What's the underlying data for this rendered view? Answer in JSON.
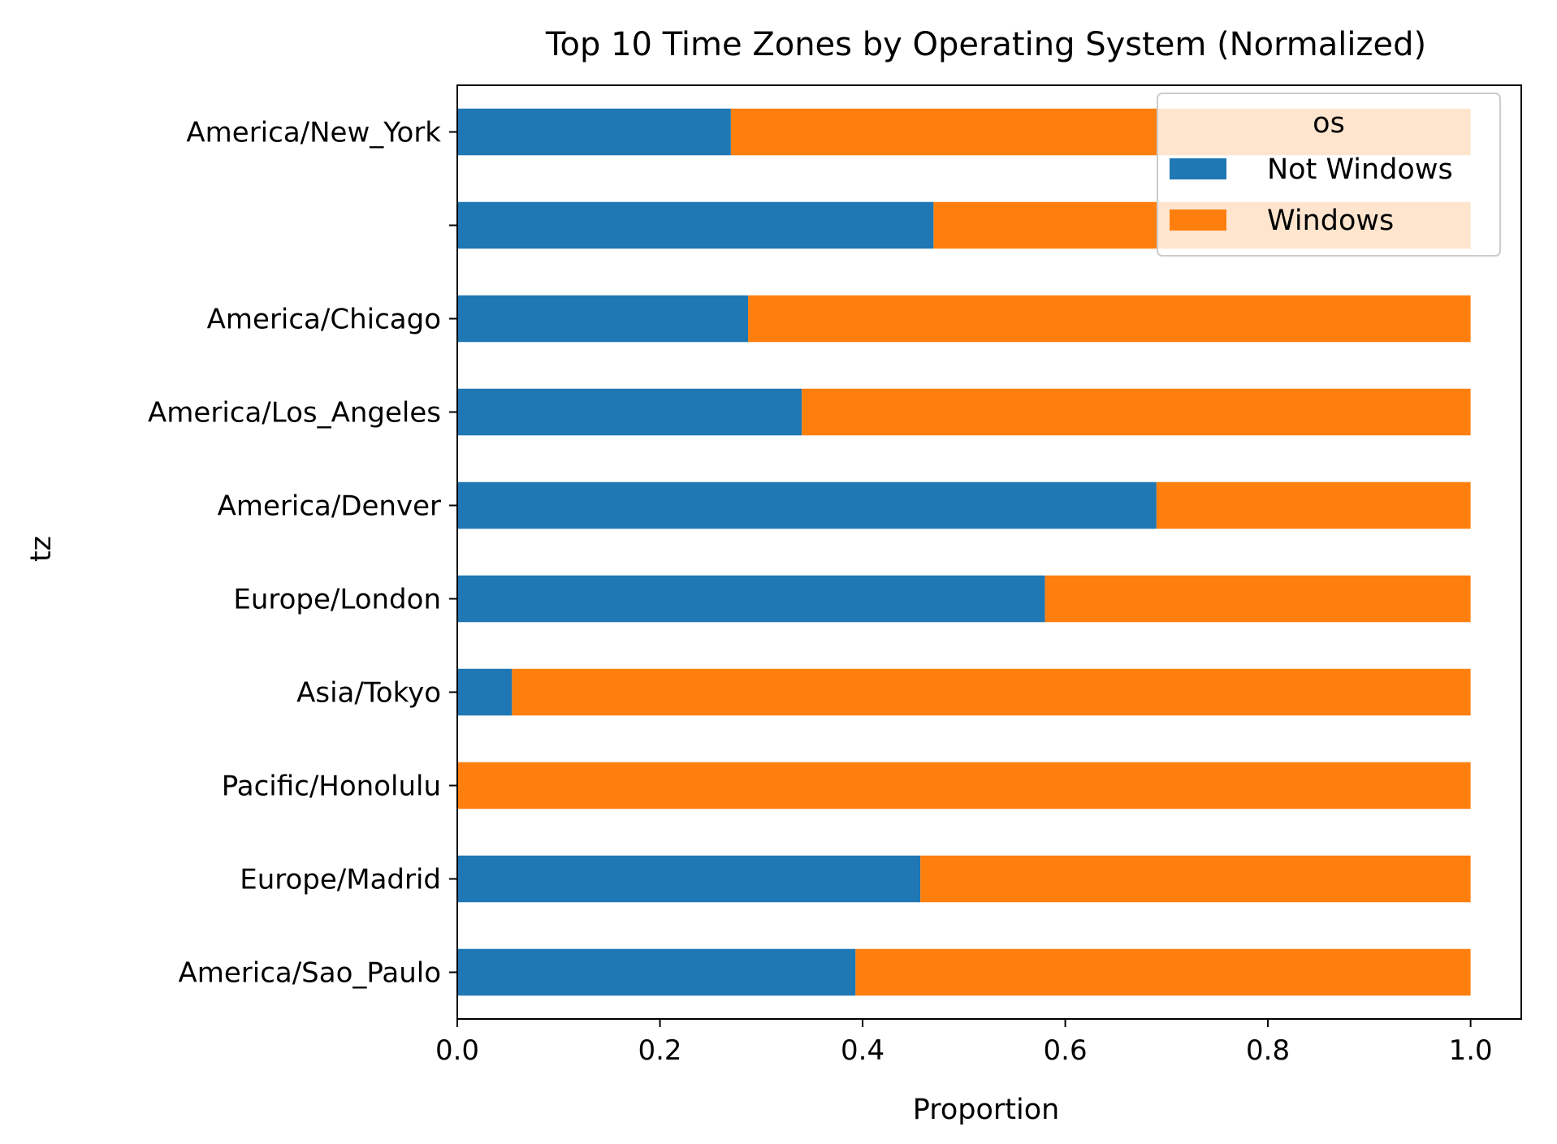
{
  "chart_data": {
    "type": "bar",
    "orientation": "horizontal",
    "stacked": true,
    "title": "Top 10 Time Zones by Operating System (Normalized)",
    "xlabel": "Proportion",
    "ylabel": "tz",
    "xlim": [
      0,
      1.05
    ],
    "xticks": [
      0.0,
      0.2,
      0.4,
      0.6,
      0.8,
      1.0
    ],
    "xtick_labels": [
      "0.0",
      "0.2",
      "0.4",
      "0.6",
      "0.8",
      "1.0"
    ],
    "grid": false,
    "legend": {
      "title": "os",
      "position": "top-right"
    },
    "categories": [
      "America/New_York",
      "",
      "America/Chicago",
      "America/Los_Angeles",
      "America/Denver",
      "Europe/London",
      "Asia/Tokyo",
      "Pacific/Honolulu",
      "Europe/Madrid",
      "America/Sao_Paulo"
    ],
    "series": [
      {
        "name": "Not Windows",
        "color": "#1f77b4",
        "values": [
          0.27,
          0.47,
          0.287,
          0.34,
          0.69,
          0.58,
          0.054,
          0.0,
          0.457,
          0.393
        ]
      },
      {
        "name": "Windows",
        "color": "#ff7f0e",
        "values": [
          0.73,
          0.53,
          0.713,
          0.66,
          0.31,
          0.42,
          0.946,
          1.0,
          0.543,
          0.607
        ]
      }
    ]
  }
}
